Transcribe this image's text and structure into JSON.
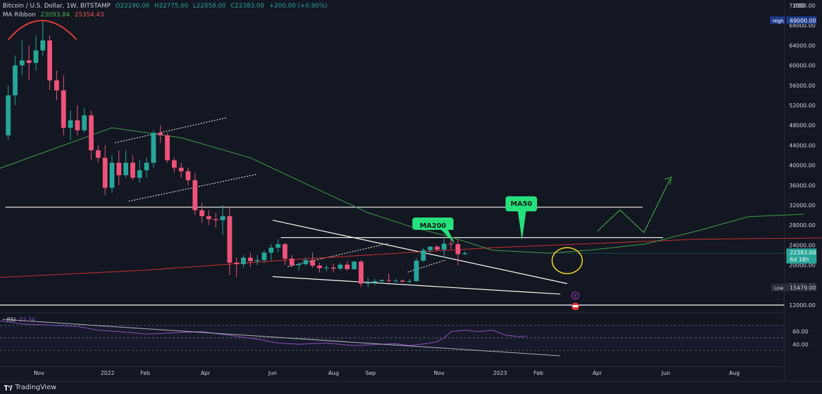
{
  "header": {
    "symbol": "Bitcoin / U.S. Dollar, 1W, BITSTAMP",
    "ohlc": {
      "o": "O22190.00",
      "h": "H22775.00",
      "l": "L22058.00",
      "c": "C22383.00",
      "chg": "+200.00 (+0.90%)"
    },
    "ma_label": "MA Ribbon",
    "ma_val1": "23093.84",
    "ma_val2": "25354.43"
  },
  "chart_data": {
    "type": "candlestick",
    "currency": "USD",
    "x_ticks": [
      "Nov",
      "2022",
      "Feb",
      "Apr",
      "Jun",
      "Aug",
      "Sep",
      "Nov",
      "2023",
      "Feb",
      "Apr",
      "Jun",
      "Aug"
    ],
    "y_ticks": [
      "72000.00",
      "68000.00",
      "64000.00",
      "60000.00",
      "56000.00",
      "52000.00",
      "48000.00",
      "44000.00",
      "40000.00",
      "36000.00",
      "32000.00",
      "28000.00",
      "24000.00",
      "20000.00",
      "16000.00",
      "12000.00"
    ],
    "price_badges": {
      "high": {
        "label": "High",
        "value": "69000.00"
      },
      "current": {
        "value": "22383.00",
        "timer": "6d 18h"
      },
      "low": {
        "label": "Low",
        "value": "15479.00"
      }
    },
    "annotations": {
      "ma200": "MA200",
      "ma50": "MA50"
    },
    "candles": [
      [
        46000,
        56000,
        45000,
        54000
      ],
      [
        54000,
        62000,
        52000,
        60000
      ],
      [
        60000,
        65000,
        58000,
        61000
      ],
      [
        61000,
        64000,
        57000,
        60500
      ],
      [
        60500,
        66000,
        59000,
        63000
      ],
      [
        63000,
        69000,
        62000,
        65000
      ],
      [
        65000,
        66000,
        55000,
        57000
      ],
      [
        57000,
        59000,
        53000,
        55000
      ],
      [
        55000,
        58000,
        46000,
        47500
      ],
      [
        47500,
        51000,
        45000,
        49000
      ],
      [
        49000,
        52000,
        46000,
        47000
      ],
      [
        47000,
        51500,
        46500,
        50000
      ],
      [
        50000,
        51000,
        41000,
        43000
      ],
      [
        43000,
        44000,
        40500,
        41500
      ],
      [
        41500,
        44000,
        34000,
        35500
      ],
      [
        35500,
        42000,
        34500,
        40500
      ],
      [
        40500,
        43000,
        36000,
        38000
      ],
      [
        38000,
        43000,
        37500,
        40500
      ],
      [
        40500,
        42000,
        37000,
        37500
      ],
      [
        37500,
        41000,
        36500,
        39000
      ],
      [
        39000,
        41500,
        37500,
        40500
      ],
      [
        40500,
        47000,
        39500,
        46500
      ],
      [
        46500,
        48000,
        44500,
        46000
      ],
      [
        46000,
        46500,
        40500,
        41000
      ],
      [
        41000,
        41500,
        38500,
        39500
      ],
      [
        39500,
        40500,
        37500,
        38800
      ],
      [
        38800,
        39500,
        36000,
        37000
      ],
      [
        37000,
        38500,
        30000,
        31000
      ],
      [
        31000,
        32500,
        28500,
        29800
      ],
      [
        29800,
        31000,
        28000,
        29200
      ],
      [
        29200,
        30500,
        27500,
        29000
      ],
      [
        29000,
        32000,
        26000,
        29800
      ],
      [
        29800,
        31500,
        18000,
        20500
      ],
      [
        20500,
        21500,
        17600,
        20200
      ],
      [
        20200,
        22000,
        19500,
        21500
      ],
      [
        21500,
        22500,
        19600,
        20800
      ],
      [
        20800,
        22000,
        20000,
        21000
      ],
      [
        21000,
        23000,
        20500,
        22500
      ],
      [
        22500,
        24200,
        21000,
        23500
      ],
      [
        23500,
        25200,
        22600,
        24200
      ],
      [
        24200,
        24500,
        20000,
        21300
      ],
      [
        21300,
        22000,
        19600,
        20000
      ],
      [
        20000,
        20500,
        19000,
        20200
      ],
      [
        20200,
        21500,
        19800,
        21000
      ],
      [
        21000,
        22500,
        19500,
        19900
      ],
      [
        19900,
        20500,
        18500,
        19400
      ],
      [
        19400,
        20000,
        18800,
        19500
      ],
      [
        19500,
        20300,
        18600,
        19300
      ],
      [
        19300,
        20500,
        19000,
        20100
      ],
      [
        20100,
        20800,
        18900,
        19200
      ],
      [
        19200,
        20900,
        19000,
        20700
      ],
      [
        20700,
        21000,
        15600,
        16300
      ],
      [
        16300,
        17500,
        15600,
        16500
      ],
      [
        16500,
        17200,
        16000,
        16800
      ],
      [
        16800,
        17100,
        16300,
        17000
      ],
      [
        17000,
        18300,
        16500,
        16900
      ],
      [
        16900,
        17300,
        16600,
        16900
      ],
      [
        16900,
        17100,
        16500,
        16700
      ],
      [
        16700,
        17200,
        16400,
        16800
      ],
      [
        16800,
        21500,
        16700,
        20900
      ],
      [
        20900,
        23500,
        20600,
        23000
      ],
      [
        23000,
        23800,
        22500,
        23700
      ],
      [
        23700,
        24000,
        22800,
        23100
      ],
      [
        23100,
        25200,
        21500,
        24300
      ],
      [
        24300,
        25100,
        23200,
        24200
      ],
      [
        24200,
        25000,
        20000,
        22190
      ],
      [
        22190,
        22775,
        22058,
        22383
      ]
    ],
    "ma_red": [
      [
        -2,
        17500
      ],
      [
        20,
        19000
      ],
      [
        40,
        21000
      ],
      [
        60,
        22700
      ],
      [
        70,
        23500
      ],
      [
        100,
        25200
      ],
      [
        130,
        25600
      ],
      [
        150,
        25800
      ],
      [
        180,
        26800
      ],
      [
        200,
        29000
      ]
    ],
    "ma_green": [
      [
        -2,
        39000
      ],
      [
        8,
        44000
      ],
      [
        15,
        47500
      ],
      [
        25,
        45500
      ],
      [
        35,
        41500
      ],
      [
        45,
        35000
      ],
      [
        52,
        30500
      ],
      [
        58,
        27800
      ],
      [
        64,
        25600
      ],
      [
        70,
        23000
      ],
      [
        78,
        22400
      ],
      [
        84,
        23000
      ],
      [
        92,
        24200
      ],
      [
        100,
        27000
      ],
      [
        107,
        29700
      ],
      [
        115,
        30200
      ]
    ],
    "rsi_ticks": [
      "60.00",
      "40.00"
    ],
    "rsi_label": "RSI",
    "rsi_val": "52.34",
    "rsi": [
      [
        -2,
        78
      ],
      [
        2,
        72
      ],
      [
        6,
        70
      ],
      [
        10,
        68
      ],
      [
        13,
        62
      ],
      [
        16,
        60
      ],
      [
        20,
        56
      ],
      [
        24,
        58
      ],
      [
        28,
        60
      ],
      [
        32,
        54
      ],
      [
        36,
        48
      ],
      [
        39,
        42
      ],
      [
        42,
        40
      ],
      [
        46,
        42
      ],
      [
        50,
        38
      ],
      [
        54,
        40
      ],
      [
        56,
        41
      ],
      [
        58,
        38
      ],
      [
        61,
        42
      ],
      [
        62,
        44
      ],
      [
        63,
        50
      ],
      [
        64,
        60
      ],
      [
        66,
        62
      ],
      [
        68,
        60
      ],
      [
        70,
        62
      ],
      [
        71,
        58
      ],
      [
        72,
        54
      ],
      [
        74,
        52
      ],
      [
        75,
        53
      ]
    ]
  },
  "footer": {
    "brand": "TradingView"
  }
}
